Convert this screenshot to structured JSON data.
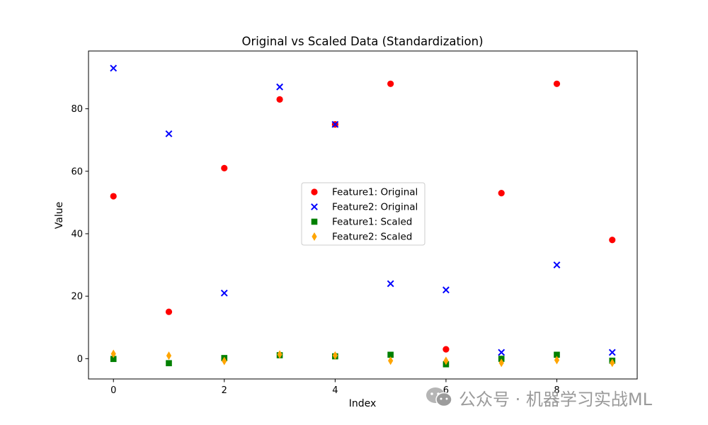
{
  "chart_data": {
    "type": "scatter",
    "title": "Original vs Scaled Data (Standardization)",
    "xlabel": "Index",
    "ylabel": "Value",
    "xlim": [
      -0.45,
      9.45
    ],
    "ylim": [
      -6.5,
      98.5
    ],
    "xticks": [
      0,
      2,
      4,
      6,
      8
    ],
    "yticks": [
      0,
      20,
      40,
      60,
      80
    ],
    "legend_position": "center",
    "x": [
      0,
      1,
      2,
      3,
      4,
      5,
      6,
      7,
      8,
      9
    ],
    "series": [
      {
        "name": "Feature1: Original",
        "marker": "circle",
        "color": "#ff0000",
        "values": [
          52,
          15,
          61,
          83,
          75,
          88,
          3,
          53,
          88,
          38
        ]
      },
      {
        "name": "Feature2: Original",
        "marker": "x",
        "color": "#0000ff",
        "values": [
          93,
          72,
          21,
          87,
          75,
          24,
          22,
          2,
          30,
          2
        ]
      },
      {
        "name": "Feature1: Scaled",
        "marker": "square",
        "color": "#008000",
        "values": [
          -0.1,
          -1.45,
          0.2,
          1.1,
          0.75,
          1.25,
          -1.8,
          -0.05,
          1.25,
          -0.65
        ]
      },
      {
        "name": "Feature2: Scaled",
        "marker": "diamond",
        "color": "#ffa500",
        "values": [
          1.55,
          0.95,
          -0.75,
          1.35,
          1.0,
          -0.65,
          -0.7,
          -1.35,
          -0.45,
          -1.35
        ]
      }
    ]
  },
  "watermark": {
    "text": "公众号 · 机器学习实战ML",
    "icon": "wechat-icon"
  }
}
